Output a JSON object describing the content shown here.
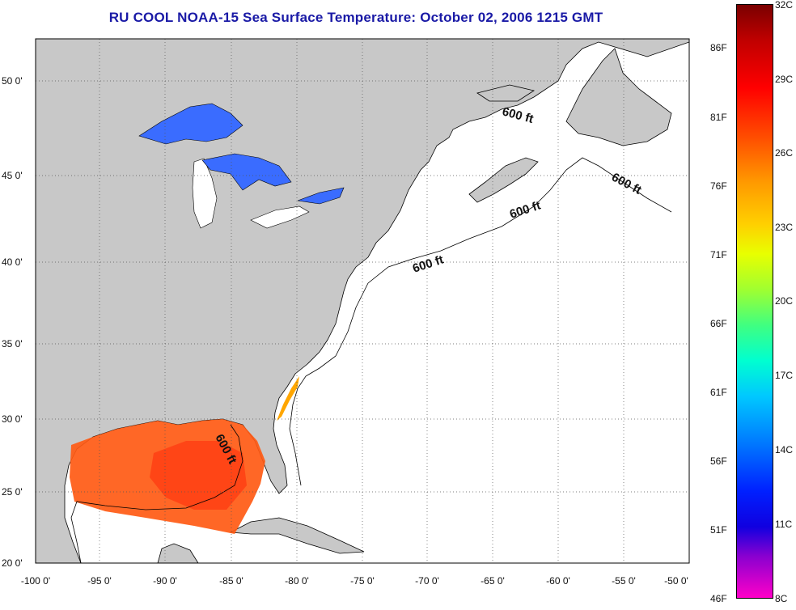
{
  "title": "RU COOL  NOAA-15  Sea Surface Temperature:  October 02, 2006 1215 GMT",
  "map": {
    "lon_ticks": [
      "-100 0'",
      "-95 0'",
      "-90 0'",
      "-85 0'",
      "-80 0'",
      "-75 0'",
      "-70 0'",
      "-65 0'",
      "-60 0'",
      "-55 0'",
      "-50 0'"
    ],
    "lat_ticks": [
      "50 0'",
      "45 0'",
      "40 0'",
      "35 0'",
      "30 0'",
      "25 0'",
      "20 0'"
    ],
    "depth_labels": [
      "600 ft",
      "600 ft",
      "600 ft",
      "600 ft",
      "600 ft"
    ],
    "colors": {
      "land": "#c8c8c8",
      "ocean": "#ffffff",
      "gulf_sst": "#ff5a14",
      "lakes": "#3a6cff"
    }
  },
  "colorbar": {
    "celsius": [
      "32C",
      "29C",
      "26C",
      "23C",
      "20C",
      "17C",
      "14C",
      "11C",
      "8C"
    ],
    "fahrenheit": [
      "86F",
      "81F",
      "76F",
      "71F",
      "66F",
      "61F",
      "56F",
      "51F",
      "46F"
    ]
  }
}
